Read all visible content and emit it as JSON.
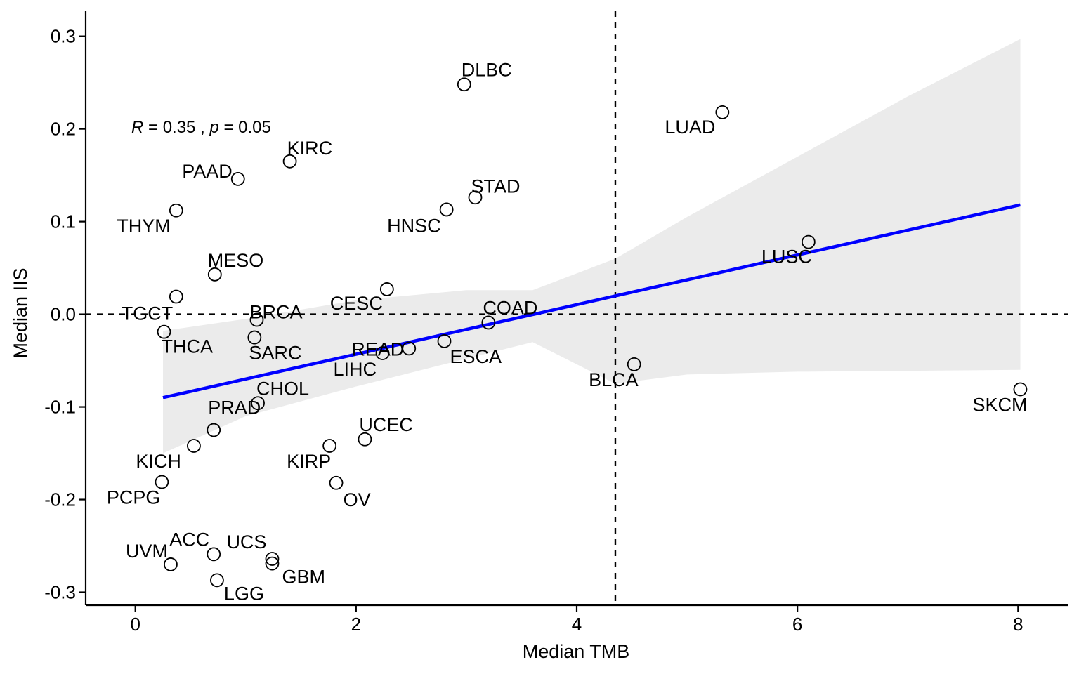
{
  "chart_data": {
    "type": "scatter",
    "xlabel": "Median TMB",
    "ylabel": "Median IIS",
    "xlim": [
      -0.45,
      8.45
    ],
    "ylim": [
      -0.314,
      0.327
    ],
    "x_ticks": [
      0,
      2,
      4,
      6,
      8
    ],
    "y_ticks": [
      -0.3,
      -0.2,
      -0.1,
      0.0,
      0.1,
      0.2,
      0.3
    ],
    "x_tick_labels": [
      "0",
      "2",
      "4",
      "6",
      "8"
    ],
    "y_tick_labels": [
      "-0.3",
      "-0.2",
      "-0.1",
      "0.0",
      "0.1",
      "0.2",
      "0.3"
    ],
    "grid": false,
    "reference_lines": {
      "vertical_x": 4.35,
      "horizontal_y": 0.0
    },
    "stat": {
      "r_symbol": "R",
      "r_text": " = 0.35 , ",
      "p_symbol": "p",
      "p_text": " = 0.05"
    },
    "regression": {
      "x": [
        0.25,
        8.02
      ],
      "y": [
        -0.09,
        0.118
      ],
      "color": "#0000ff",
      "ci_band": {
        "x": [
          0.25,
          1.0,
          2.0,
          3.0,
          3.6,
          4.35,
          5.0,
          6.0,
          7.0,
          8.02
        ],
        "upper": [
          -0.018,
          -0.005,
          0.015,
          0.026,
          0.026,
          0.06,
          0.105,
          0.17,
          0.235,
          0.297
        ],
        "lower": [
          -0.15,
          -0.11,
          -0.078,
          -0.048,
          -0.03,
          -0.075,
          -0.065,
          -0.062,
          -0.061,
          -0.06
        ]
      },
      "ci_color": "#ebebeb"
    },
    "points": [
      {
        "label": "DLBC",
        "x": 2.98,
        "y": 0.248
      },
      {
        "label": "LUAD",
        "x": 5.32,
        "y": 0.218
      },
      {
        "label": "KIRC",
        "x": 1.4,
        "y": 0.165
      },
      {
        "label": "PAAD",
        "x": 0.93,
        "y": 0.146
      },
      {
        "label": "THYM",
        "x": 0.37,
        "y": 0.112
      },
      {
        "label": "STAD",
        "x": 3.08,
        "y": 0.126
      },
      {
        "label": "HNSC",
        "x": 2.82,
        "y": 0.113
      },
      {
        "label": "LUSC",
        "x": 6.1,
        "y": 0.078
      },
      {
        "label": "MESO",
        "x": 0.72,
        "y": 0.043
      },
      {
        "label": "TGCT",
        "x": 0.37,
        "y": 0.019
      },
      {
        "label": "CESC",
        "x": 2.28,
        "y": 0.027
      },
      {
        "label": "BRCA",
        "x": 1.1,
        "y": -0.006
      },
      {
        "label": "COAD",
        "x": 3.2,
        "y": -0.009
      },
      {
        "label": "THCA",
        "x": 0.26,
        "y": -0.019
      },
      {
        "label": "SARC",
        "x": 1.08,
        "y": -0.025
      },
      {
        "label": "ESCA",
        "x": 2.8,
        "y": -0.029
      },
      {
        "label": "READ",
        "x": 2.48,
        "y": -0.037
      },
      {
        "label": "LIHC",
        "x": 2.24,
        "y": -0.042
      },
      {
        "label": "BLCA",
        "x": 4.52,
        "y": -0.054
      },
      {
        "label": "SKCM",
        "x": 8.02,
        "y": -0.081
      },
      {
        "label": "CHOL",
        "x": 1.11,
        "y": -0.096
      },
      {
        "label": "PRAD",
        "x": 0.71,
        "y": -0.125
      },
      {
        "label": "UCEC",
        "x": 2.08,
        "y": -0.135
      },
      {
        "label": "KICH",
        "x": 0.53,
        "y": -0.142
      },
      {
        "label": "KIRP",
        "x": 1.76,
        "y": -0.142
      },
      {
        "label": "PCPG",
        "x": 0.24,
        "y": -0.181
      },
      {
        "label": "OV",
        "x": 1.82,
        "y": -0.182
      },
      {
        "label": "UVM",
        "x": 0.32,
        "y": -0.27
      },
      {
        "label": "ACC",
        "x": 0.71,
        "y": -0.259
      },
      {
        "label": "UCS",
        "x": 1.24,
        "y": -0.264
      },
      {
        "label": "GBM",
        "x": 1.24,
        "y": -0.269
      },
      {
        "label": "LGG",
        "x": 0.74,
        "y": -0.287
      }
    ]
  }
}
